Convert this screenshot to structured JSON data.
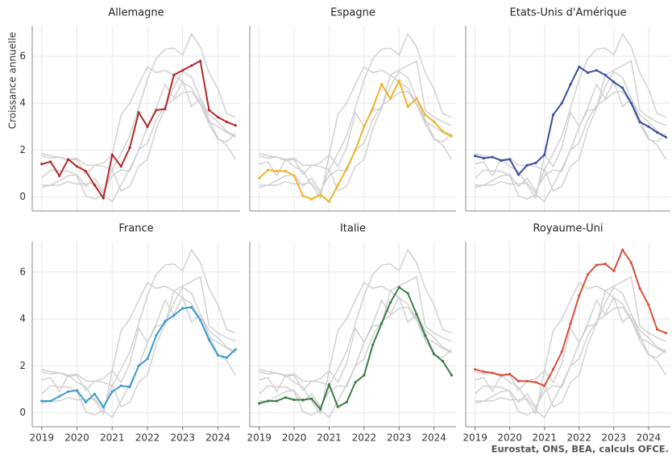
{
  "chart_data": {
    "type": "line",
    "ylabel": "Croissance annuelle",
    "source": "Eurostat, ONS, BEA, calculs OFCE.",
    "x": [
      2019,
      2019.25,
      2019.5,
      2019.75,
      2020,
      2020.25,
      2020.5,
      2020.75,
      2021,
      2021.25,
      2021.5,
      2021.75,
      2022,
      2022.25,
      2022.5,
      2022.75,
      2023,
      2023.25,
      2023.5,
      2023.75,
      2024,
      2024.25,
      2024.5
    ],
    "xlim": [
      2018.73,
      2024.63
    ],
    "xticks": [
      2019,
      2020,
      2021,
      2022,
      2023,
      2024
    ],
    "ylim": [
      -0.6,
      7.3
    ],
    "yticks": [
      0,
      2,
      4,
      6
    ],
    "grid": true,
    "other_color": "#cfcfcf",
    "series": [
      {
        "name": "Allemagne",
        "color": "#b02a2a",
        "values": [
          1.4,
          1.5,
          0.9,
          1.6,
          1.3,
          1.1,
          0.5,
          -0.05,
          1.8,
          1.3,
          2.1,
          3.6,
          3.0,
          3.7,
          3.75,
          5.2,
          5.4,
          5.6,
          5.8,
          3.7,
          3.4,
          3.2,
          3.05
        ]
      },
      {
        "name": "Espagne",
        "color": "#f0b429",
        "values": [
          0.8,
          1.15,
          1.1,
          1.1,
          0.9,
          0.05,
          -0.1,
          0.1,
          -0.2,
          0.5,
          1.2,
          2.0,
          3.0,
          3.8,
          4.8,
          4.2,
          4.95,
          3.85,
          4.2,
          3.5,
          3.2,
          2.8,
          2.6
        ]
      },
      {
        "name": "Etats-Unis d'Amérique",
        "color": "#3a4fa0",
        "values": [
          1.75,
          1.65,
          1.7,
          1.55,
          1.6,
          0.95,
          1.35,
          1.45,
          1.8,
          3.5,
          4.0,
          4.8,
          5.55,
          5.3,
          5.4,
          5.2,
          4.9,
          4.65,
          4.0,
          3.2,
          3.0,
          2.75,
          2.55
        ]
      },
      {
        "name": "France",
        "color": "#3d9bd0",
        "values": [
          0.5,
          0.5,
          0.7,
          0.9,
          0.95,
          0.45,
          0.8,
          0.25,
          0.9,
          1.15,
          1.1,
          2.0,
          2.3,
          3.3,
          3.9,
          4.15,
          4.45,
          4.5,
          3.95,
          3.1,
          2.45,
          2.35,
          2.7
        ]
      },
      {
        "name": "Italie",
        "color": "#3d7d4a",
        "values": [
          0.4,
          0.5,
          0.5,
          0.65,
          0.55,
          0.55,
          0.6,
          0.15,
          1.2,
          0.25,
          0.45,
          1.3,
          1.6,
          2.9,
          3.8,
          4.7,
          5.35,
          5.1,
          4.2,
          3.3,
          2.5,
          2.2,
          1.6
        ]
      },
      {
        "name": "Royaume-Uni",
        "color": "#d9503a",
        "values": [
          1.85,
          1.75,
          1.7,
          1.6,
          1.65,
          1.35,
          1.35,
          1.3,
          1.15,
          1.85,
          2.6,
          3.8,
          5.0,
          5.9,
          6.3,
          6.35,
          6.05,
          6.95,
          6.4,
          5.3,
          4.6,
          3.55,
          3.4
        ]
      }
    ]
  }
}
